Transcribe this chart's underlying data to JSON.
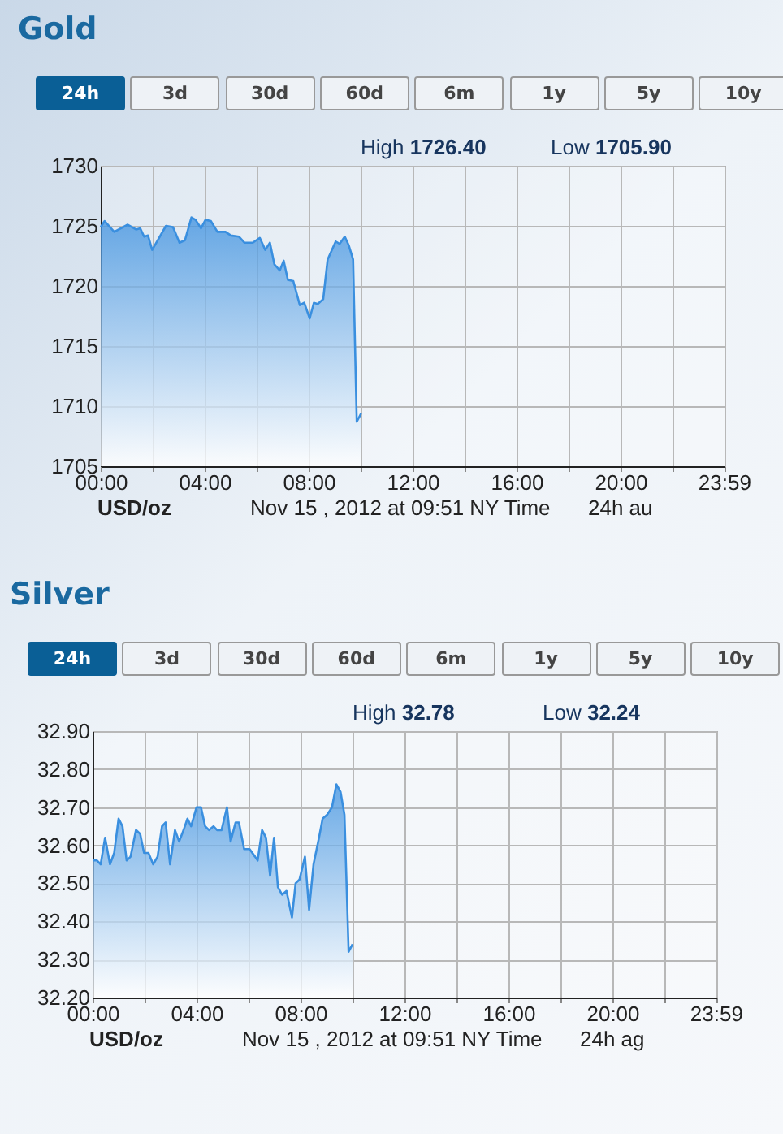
{
  "chart_data": [
    {
      "type": "area",
      "title": "Gold",
      "color": "#3a8fdf",
      "marker": "none",
      "line_style": "solid",
      "grid": true,
      "annotations": [
        "24h",
        "3d",
        "30d",
        "60d",
        "6m",
        "1y",
        "5y",
        "10y",
        "High 1726.40",
        "Low 1705.90",
        "USD/oz",
        "Nov 15 , 2012 at 09:51 NY Time",
        "24h au"
      ],
      "x": [
        0,
        0.15,
        0.52,
        1.04,
        1.36,
        1.52,
        1.67,
        1.82,
        1.98,
        2.51,
        2.78,
        3.03,
        3.24,
        3.49,
        3.65,
        3.86,
        4.03,
        4.24,
        4.49,
        4.8,
        5.01,
        5.32,
        5.53,
        5.85,
        6.12,
        6.33,
        6.51,
        6.68,
        6.89,
        7.04,
        7.2,
        7.41,
        7.66,
        7.83,
        8.04,
        8.2,
        8.35,
        8.56,
        8.73,
        9.04,
        9.19,
        9.39,
        9.54,
        9.71,
        9.85,
        10.02
      ],
      "values": [
        1724.9,
        1725.4,
        1724.5,
        1725.1,
        1724.7,
        1724.8,
        1724.1,
        1724.2,
        1723.0,
        1725.0,
        1724.9,
        1723.6,
        1723.8,
        1725.7,
        1725.5,
        1724.8,
        1725.5,
        1725.4,
        1724.5,
        1724.5,
        1724.2,
        1724.1,
        1723.6,
        1723.6,
        1724.0,
        1723.0,
        1723.6,
        1721.8,
        1721.3,
        1722.1,
        1720.5,
        1720.4,
        1718.4,
        1718.6,
        1717.3,
        1718.6,
        1718.5,
        1718.9,
        1722.2,
        1723.7,
        1723.5,
        1724.1,
        1723.4,
        1722.2,
        1708.7,
        1709.4
      ],
      "xlim": [
        0,
        24
      ],
      "xticks": [
        {
          "value": 0,
          "label": "00:00"
        },
        {
          "value": 2,
          "label": null
        },
        {
          "value": 4,
          "label": "04:00"
        },
        {
          "value": 6,
          "label": null
        },
        {
          "value": 8,
          "label": "08:00"
        },
        {
          "value": 10,
          "label": null
        },
        {
          "value": 12,
          "label": "12:00"
        },
        {
          "value": 14,
          "label": null
        },
        {
          "value": 16,
          "label": "16:00"
        },
        {
          "value": 18,
          "label": null
        },
        {
          "value": 20,
          "label": "20:00"
        },
        {
          "value": 22,
          "label": null
        },
        {
          "value": 23.98,
          "label": "23:59"
        }
      ],
      "ylim": [
        1705,
        1730
      ],
      "yticks": [
        1705,
        1710,
        1715,
        1720,
        1725,
        1730
      ]
    },
    {
      "type": "area",
      "title": "Silver",
      "color": "#3a8fdf",
      "marker": "none",
      "line_style": "solid",
      "grid": true,
      "annotations": [
        "24h",
        "3d",
        "30d",
        "60d",
        "6m",
        "1y",
        "5y",
        "10y",
        "High 32.78",
        "Low 32.24",
        "USD/oz",
        "Nov 15 , 2012 at 09:51 NY Time",
        "24h ag"
      ],
      "x": [
        0,
        0.17,
        0.31,
        0.48,
        0.67,
        0.83,
        1.0,
        1.15,
        1.31,
        1.46,
        1.67,
        1.83,
        1.98,
        2.15,
        2.33,
        2.5,
        2.67,
        2.81,
        2.98,
        3.17,
        3.33,
        3.5,
        3.65,
        3.79,
        4.0,
        4.17,
        4.33,
        4.48,
        4.65,
        4.79,
        4.96,
        5.17,
        5.31,
        5.5,
        5.63,
        5.83,
        6.04,
        6.25,
        6.35,
        6.52,
        6.67,
        6.83,
        6.98,
        7.13,
        7.29,
        7.46,
        7.67,
        7.81,
        7.96,
        8.17,
        8.33,
        8.5,
        8.71,
        8.85,
        9.02,
        9.21,
        9.38,
        9.54,
        9.69,
        9.85,
        10.0
      ],
      "values": [
        32.56,
        32.56,
        32.55,
        32.62,
        32.55,
        32.58,
        32.67,
        32.65,
        32.56,
        32.57,
        32.64,
        32.63,
        32.58,
        32.58,
        32.55,
        32.57,
        32.65,
        32.66,
        32.55,
        32.64,
        32.61,
        32.64,
        32.67,
        32.65,
        32.7,
        32.7,
        32.65,
        32.64,
        32.65,
        32.64,
        32.64,
        32.7,
        32.61,
        32.66,
        32.66,
        32.59,
        32.59,
        32.57,
        32.56,
        32.64,
        32.62,
        32.52,
        32.62,
        32.49,
        32.47,
        32.48,
        32.41,
        32.5,
        32.51,
        32.57,
        32.43,
        32.55,
        32.62,
        32.67,
        32.68,
        32.7,
        32.76,
        32.74,
        32.68,
        32.32,
        32.34
      ],
      "xlim": [
        0,
        24
      ],
      "xticks": [
        {
          "value": 0,
          "label": "00:00"
        },
        {
          "value": 2,
          "label": null
        },
        {
          "value": 4,
          "label": "04:00"
        },
        {
          "value": 6,
          "label": null
        },
        {
          "value": 8,
          "label": "08:00"
        },
        {
          "value": 10,
          "label": null
        },
        {
          "value": 12,
          "label": "12:00"
        },
        {
          "value": 14,
          "label": null
        },
        {
          "value": 16,
          "label": "16:00"
        },
        {
          "value": 18,
          "label": null
        },
        {
          "value": 20,
          "label": "20:00"
        },
        {
          "value": 22,
          "label": null
        },
        {
          "value": 23.98,
          "label": "23:59"
        }
      ],
      "ylim": [
        32.2,
        32.9
      ],
      "yticks": [
        {
          "value": 32.2,
          "label": "32.20"
        },
        {
          "value": 32.3,
          "label": "32.30"
        },
        {
          "value": 32.4,
          "label": "32.40"
        },
        {
          "value": 32.5,
          "label": "32.50"
        },
        {
          "value": 32.6,
          "label": "32.60"
        },
        {
          "value": 32.7,
          "label": "32.70"
        },
        {
          "value": 32.8,
          "label": "32.80"
        },
        {
          "value": 32.9,
          "label": "32.90"
        }
      ]
    }
  ]
}
